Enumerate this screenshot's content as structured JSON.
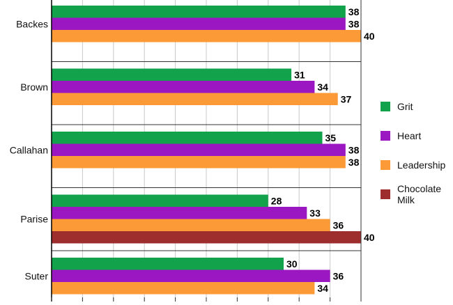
{
  "chart_data": {
    "type": "bar",
    "orientation": "horizontal",
    "categories": [
      "Backes",
      "Brown",
      "Callahan",
      "Parise",
      "Suter"
    ],
    "series": [
      {
        "name": "Grit",
        "color": "#12a24c",
        "values": [
          38,
          31,
          35,
          28,
          30
        ]
      },
      {
        "name": "Heart",
        "color": "#9b17c2",
        "values": [
          38,
          34,
          38,
          33,
          36
        ]
      },
      {
        "name": "Leadership",
        "color": "#fb9a36",
        "values": [
          40,
          37,
          38,
          36,
          34
        ]
      },
      {
        "name": "Chocolate Milk",
        "color": "#9e2e2e",
        "values": [
          null,
          null,
          null,
          40,
          null
        ]
      }
    ],
    "xlim": [
      0,
      40
    ],
    "grid": true,
    "legend": "right",
    "data_labels": true
  }
}
